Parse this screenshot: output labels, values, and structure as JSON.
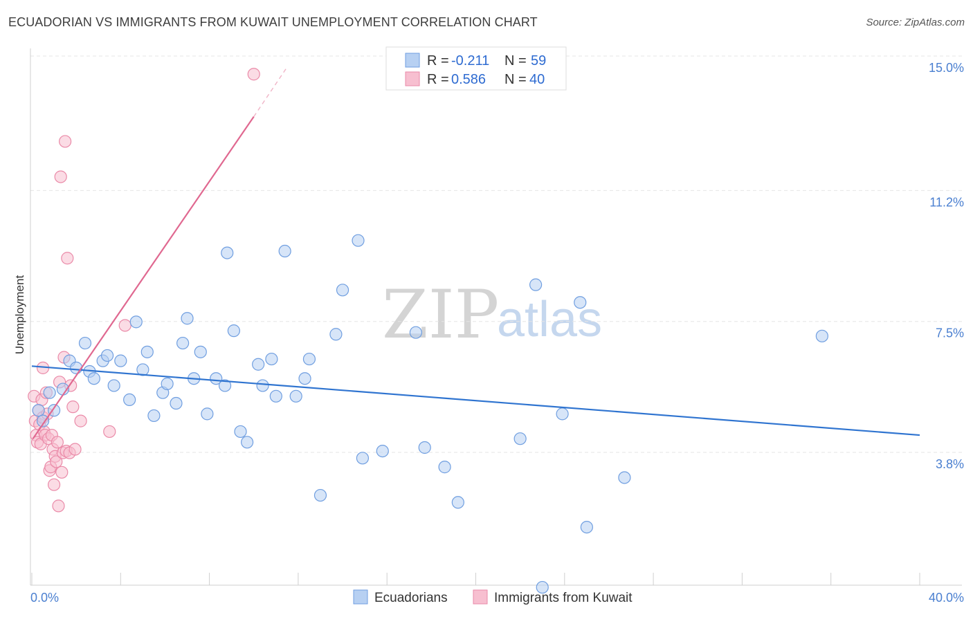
{
  "header": {
    "title": "ECUADORIAN VS IMMIGRANTS FROM KUWAIT UNEMPLOYMENT CORRELATION CHART",
    "source": "Source: ZipAtlas.com"
  },
  "watermark": {
    "zip": "ZIP",
    "atlas": "atlas"
  },
  "colors": {
    "blue_fill": "#b7d0f2",
    "blue_stroke": "#6f9ee0",
    "blue_line": "#2f74d0",
    "pink_fill": "#f7bfd0",
    "pink_stroke": "#ea8aa8",
    "pink_line": "#e06890",
    "tick_text": "#4a7fd0",
    "grid": "#e6e6e6"
  },
  "legend": {
    "rows": [
      {
        "r_label": "R = ",
        "r_value": "-0.211",
        "n_label": "N = ",
        "n_value": "59"
      },
      {
        "r_label": "R = ",
        "r_value": "0.586",
        "n_label": "N = ",
        "n_value": "40"
      }
    ]
  },
  "bottom_legend": {
    "items": [
      "Ecuadorians",
      "Immigrants from Kuwait"
    ]
  },
  "chart_data": {
    "type": "scatter",
    "title": "ECUADORIAN VS IMMIGRANTS FROM KUWAIT UNEMPLOYMENT CORRELATION CHART",
    "xlabel": "",
    "ylabel": "Unemployment",
    "xlim": [
      0,
      40
    ],
    "ylim": [
      0,
      15.3
    ],
    "x_tick_labels": [
      "0.0%",
      "40.0%"
    ],
    "y_ticks": [
      3.8,
      7.5,
      11.2,
      15.0
    ],
    "y_tick_labels": [
      "3.8%",
      "7.5%",
      "11.2%",
      "15.0%"
    ],
    "grid": true,
    "legend_position": "top-center",
    "series": [
      {
        "name": "Ecuadorians",
        "r": -0.211,
        "n": 59,
        "trend": {
          "x0": 0,
          "y0": 6.55,
          "x1": 40,
          "y1": 4.6
        },
        "points": [
          [
            0.3,
            5.3
          ],
          [
            0.5,
            5.0
          ],
          [
            0.8,
            5.8
          ],
          [
            1.0,
            5.3
          ],
          [
            1.4,
            5.9
          ],
          [
            1.7,
            6.7
          ],
          [
            2.0,
            6.5
          ],
          [
            2.4,
            7.2
          ],
          [
            2.6,
            6.4
          ],
          [
            2.8,
            6.2
          ],
          [
            3.2,
            6.7
          ],
          [
            3.4,
            6.85
          ],
          [
            3.7,
            6.0
          ],
          [
            4.0,
            6.7
          ],
          [
            4.4,
            5.6
          ],
          [
            4.7,
            7.8
          ],
          [
            5.0,
            6.45
          ],
          [
            5.2,
            6.95
          ],
          [
            5.5,
            5.15
          ],
          [
            5.9,
            5.8
          ],
          [
            6.1,
            6.05
          ],
          [
            6.5,
            5.5
          ],
          [
            6.8,
            7.2
          ],
          [
            7.0,
            7.9
          ],
          [
            7.3,
            6.2
          ],
          [
            7.6,
            6.95
          ],
          [
            7.9,
            5.2
          ],
          [
            8.3,
            6.2
          ],
          [
            8.7,
            6.0
          ],
          [
            8.8,
            9.75
          ],
          [
            9.1,
            7.55
          ],
          [
            9.4,
            4.7
          ],
          [
            9.7,
            4.4
          ],
          [
            10.2,
            6.6
          ],
          [
            10.4,
            6.0
          ],
          [
            10.8,
            6.75
          ],
          [
            11.0,
            5.7
          ],
          [
            11.4,
            9.8
          ],
          [
            11.9,
            5.7
          ],
          [
            12.3,
            6.2
          ],
          [
            12.5,
            6.75
          ],
          [
            13.0,
            2.9
          ],
          [
            13.7,
            7.45
          ],
          [
            14.0,
            8.7
          ],
          [
            14.7,
            10.1
          ],
          [
            14.9,
            3.95
          ],
          [
            15.8,
            4.15
          ],
          [
            17.3,
            7.5
          ],
          [
            17.7,
            4.25
          ],
          [
            18.6,
            3.7
          ],
          [
            19.2,
            2.7
          ],
          [
            22.0,
            4.5
          ],
          [
            22.7,
            8.85
          ],
          [
            23.0,
            0.3
          ],
          [
            23.9,
            5.2
          ],
          [
            24.7,
            8.35
          ],
          [
            25.0,
            2.0
          ],
          [
            26.7,
            3.4
          ],
          [
            35.6,
            7.4
          ]
        ]
      },
      {
        "name": "Immigrants from Kuwait",
        "r": 0.586,
        "n": 40,
        "trend": {
          "x0": 0.05,
          "y0": 4.5,
          "x1": 10.0,
          "y1": 13.6
        },
        "trend_dashed": {
          "x0": 10.0,
          "y0": 13.6,
          "x1": 11.5,
          "y1": 15.0
        },
        "points": [
          [
            0.1,
            5.7
          ],
          [
            0.15,
            5.0
          ],
          [
            0.2,
            4.6
          ],
          [
            0.25,
            4.4
          ],
          [
            0.3,
            5.3
          ],
          [
            0.35,
            4.9
          ],
          [
            0.4,
            4.35
          ],
          [
            0.45,
            5.6
          ],
          [
            0.5,
            5.1
          ],
          [
            0.5,
            6.5
          ],
          [
            0.55,
            4.7
          ],
          [
            0.6,
            4.6
          ],
          [
            0.65,
            5.8
          ],
          [
            0.7,
            5.2
          ],
          [
            0.75,
            4.5
          ],
          [
            0.8,
            3.6
          ],
          [
            0.85,
            3.7
          ],
          [
            0.9,
            4.6
          ],
          [
            0.95,
            4.2
          ],
          [
            1.0,
            3.2
          ],
          [
            1.05,
            4.0
          ],
          [
            1.1,
            3.85
          ],
          [
            1.15,
            4.4
          ],
          [
            1.2,
            2.6
          ],
          [
            1.25,
            6.1
          ],
          [
            1.3,
            11.9
          ],
          [
            1.35,
            3.55
          ],
          [
            1.4,
            4.1
          ],
          [
            1.45,
            6.8
          ],
          [
            1.5,
            12.9
          ],
          [
            1.55,
            4.15
          ],
          [
            1.6,
            9.6
          ],
          [
            1.7,
            4.1
          ],
          [
            1.75,
            6.0
          ],
          [
            1.85,
            5.4
          ],
          [
            1.95,
            4.2
          ],
          [
            2.2,
            5.0
          ],
          [
            3.5,
            4.7
          ],
          [
            4.2,
            7.7
          ],
          [
            10.0,
            14.8
          ]
        ]
      }
    ]
  }
}
